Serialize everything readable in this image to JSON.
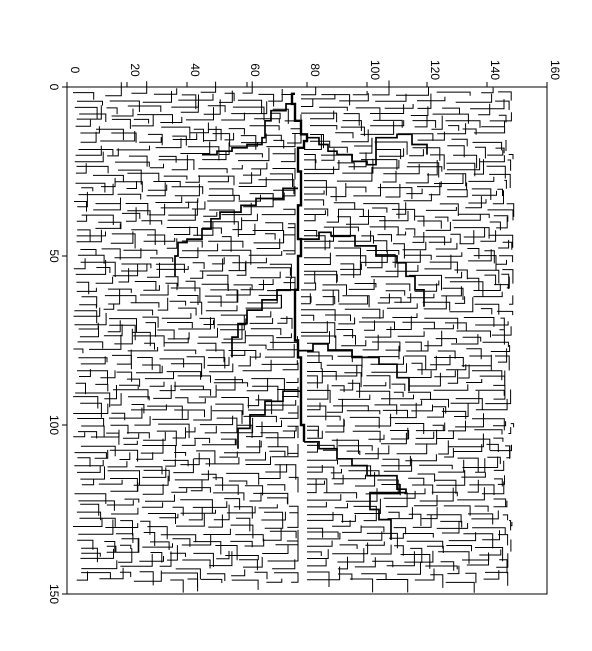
{
  "chart_data": {
    "type": "network",
    "title": "",
    "xlabel": "",
    "ylabel": "",
    "x_axis": {
      "range": [
        0,
        160
      ],
      "ticks": [
        0,
        20,
        40,
        60,
        80,
        100,
        120,
        140,
        160
      ],
      "position": "top",
      "labels_rotated": true
    },
    "y_axis": {
      "range": [
        0,
        150
      ],
      "ticks": [
        0,
        50,
        100,
        150
      ],
      "position": "left",
      "labels_rotated": true
    },
    "grid": false,
    "legend": "none",
    "description_colors": {
      "line": "#000000",
      "main_channel": "#000000",
      "background": "#ffffff"
    },
    "main_channel": {
      "points": [
        [
          76,
          2
        ],
        [
          75,
          2
        ],
        [
          75,
          5
        ],
        [
          76,
          5
        ],
        [
          76,
          10
        ],
        [
          78,
          10
        ],
        [
          78,
          14
        ],
        [
          79,
          14
        ],
        [
          80,
          14
        ],
        [
          80,
          16
        ],
        [
          79,
          16
        ],
        [
          79,
          18
        ],
        [
          77,
          18
        ],
        [
          77,
          25
        ],
        [
          78,
          25
        ],
        [
          78,
          35
        ],
        [
          77,
          35
        ],
        [
          77,
          45
        ],
        [
          78,
          45
        ],
        [
          78,
          50
        ],
        [
          77,
          50
        ],
        [
          77,
          60
        ],
        [
          76,
          60
        ],
        [
          76,
          75
        ],
        [
          77,
          75
        ],
        [
          77,
          80
        ],
        [
          78,
          80
        ],
        [
          78,
          90
        ],
        [
          78,
          100
        ],
        [
          79,
          100
        ],
        [
          79,
          105
        ]
      ]
    },
    "secondary_channels": [
      {
        "points": [
          [
            75,
            5
          ],
          [
            73,
            5
          ],
          [
            73,
            7
          ],
          [
            68,
            7
          ],
          [
            68,
            10
          ],
          [
            66,
            10
          ],
          [
            66,
            15
          ],
          [
            65,
            15
          ],
          [
            65,
            17
          ],
          [
            60,
            17
          ],
          [
            60,
            18
          ],
          [
            55,
            18
          ],
          [
            55,
            19
          ],
          [
            50,
            19
          ],
          [
            50,
            20
          ],
          [
            45,
            20
          ]
        ]
      },
      {
        "points": [
          [
            77,
            30
          ],
          [
            72,
            30
          ],
          [
            72,
            33
          ],
          [
            63,
            33
          ],
          [
            63,
            35
          ],
          [
            58,
            35
          ],
          [
            58,
            37
          ],
          [
            51,
            37
          ],
          [
            51,
            39
          ],
          [
            48,
            39
          ],
          [
            48,
            42
          ],
          [
            45,
            42
          ],
          [
            45,
            45
          ],
          [
            40,
            45
          ],
          [
            40,
            46
          ],
          [
            37,
            46
          ],
          [
            37,
            50
          ],
          [
            36,
            50
          ],
          [
            36,
            56
          ]
        ]
      },
      {
        "points": [
          [
            80,
            15
          ],
          [
            84,
            15
          ],
          [
            84,
            17
          ],
          [
            87,
            17
          ],
          [
            87,
            19
          ],
          [
            90,
            19
          ],
          [
            90,
            20
          ],
          [
            95,
            20
          ],
          [
            95,
            22
          ],
          [
            100,
            22
          ],
          [
            100,
            23
          ],
          [
            103,
            23
          ],
          [
            103,
            15
          ],
          [
            110,
            15
          ],
          [
            110,
            14
          ],
          [
            115,
            14
          ],
          [
            115,
            17
          ],
          [
            120,
            17
          ],
          [
            120,
            20
          ]
        ]
      },
      {
        "points": [
          [
            78,
            45
          ],
          [
            84,
            45
          ],
          [
            84,
            43
          ],
          [
            88,
            43
          ],
          [
            88,
            44
          ],
          [
            96,
            44
          ],
          [
            96,
            47
          ],
          [
            103,
            47
          ],
          [
            103,
            50
          ],
          [
            110,
            50
          ],
          [
            110,
            52
          ],
          [
            113,
            52
          ],
          [
            113,
            56
          ],
          [
            116,
            56
          ],
          [
            116,
            60
          ],
          [
            119,
            60
          ],
          [
            119,
            65
          ]
        ]
      },
      {
        "points": [
          [
            77,
            78
          ],
          [
            82,
            78
          ],
          [
            82,
            76
          ],
          [
            87,
            76
          ],
          [
            87,
            78
          ],
          [
            95,
            78
          ],
          [
            95,
            80
          ],
          [
            104,
            80
          ],
          [
            104,
            82
          ],
          [
            110,
            82
          ],
          [
            110,
            86
          ],
          [
            114,
            86
          ],
          [
            114,
            90
          ]
        ]
      },
      {
        "points": [
          [
            79,
            105
          ],
          [
            84,
            105
          ],
          [
            84,
            107
          ],
          [
            90,
            107
          ],
          [
            90,
            110
          ],
          [
            95,
            110
          ],
          [
            95,
            112
          ],
          [
            100,
            112
          ],
          [
            100,
            115
          ],
          [
            110,
            115
          ],
          [
            110,
            119
          ],
          [
            113,
            119
          ],
          [
            113,
            120
          ],
          [
            101,
            120
          ],
          [
            101,
            125
          ],
          [
            104,
            125
          ],
          [
            104,
            128
          ],
          [
            108,
            128
          ],
          [
            108,
            134
          ]
        ]
      },
      {
        "points": [
          [
            76,
            60
          ],
          [
            70,
            60
          ],
          [
            70,
            63
          ],
          [
            65,
            63
          ],
          [
            65,
            66
          ],
          [
            60,
            66
          ],
          [
            60,
            70
          ],
          [
            57,
            70
          ],
          [
            57,
            74
          ],
          [
            55,
            74
          ],
          [
            55,
            80
          ]
        ]
      },
      {
        "points": [
          [
            78,
            90
          ],
          [
            72,
            90
          ],
          [
            72,
            93
          ],
          [
            66,
            93
          ],
          [
            66,
            97
          ],
          [
            61,
            97
          ],
          [
            61,
            101
          ],
          [
            57,
            101
          ],
          [
            57,
            107
          ]
        ]
      }
    ]
  }
}
